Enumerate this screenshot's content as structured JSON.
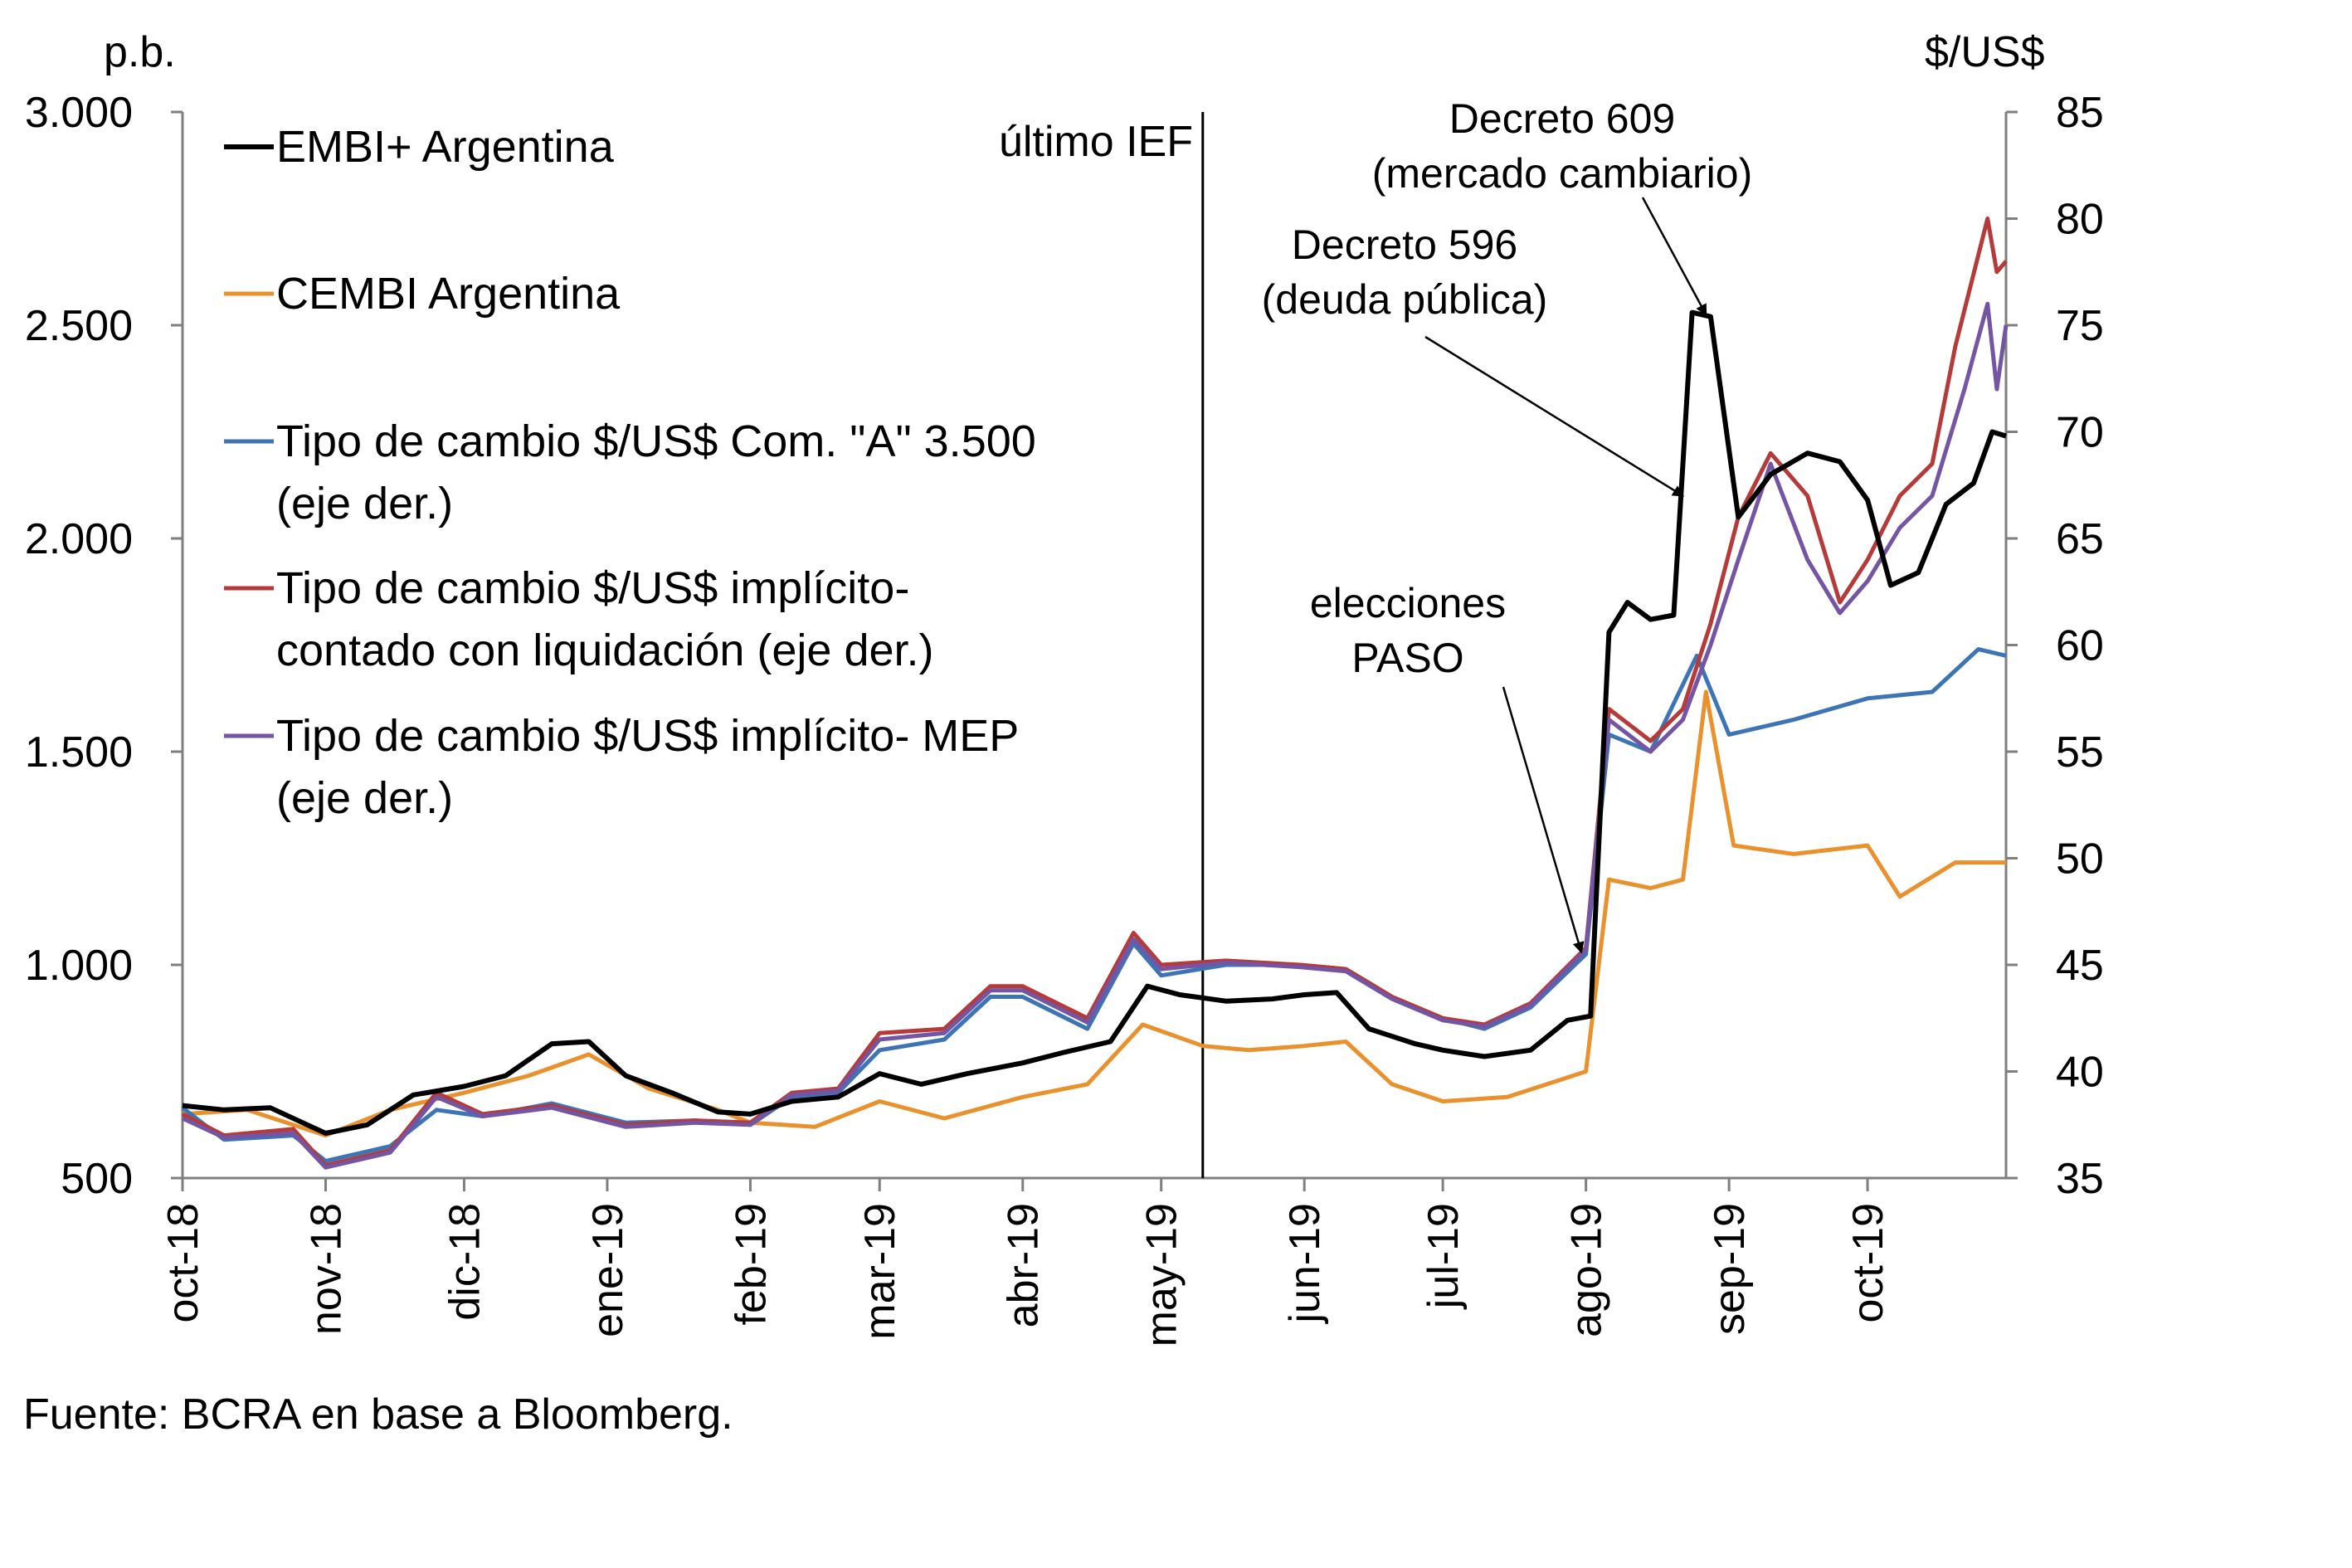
{
  "chart_data": {
    "type": "line",
    "title": "",
    "left_axis": {
      "unit": "p.b.",
      "ylim": [
        500,
        3000
      ],
      "ticks": [
        500,
        1000,
        1500,
        2000,
        2500,
        3000
      ],
      "tick_labels": [
        "500",
        "1.000",
        "1.500",
        "2.000",
        "2.500",
        "3.000"
      ]
    },
    "right_axis": {
      "unit": "$/US$",
      "ylim": [
        35,
        85
      ],
      "ticks": [
        35,
        40,
        45,
        50,
        55,
        60,
        65,
        70,
        75,
        80,
        85
      ],
      "tick_labels": [
        "35",
        "40",
        "45",
        "50",
        "55",
        "60",
        "65",
        "70",
        "75",
        "80",
        "85"
      ]
    },
    "x_axis": {
      "range": [
        "2018-10-01",
        "2019-10-31"
      ],
      "ticks": [
        "2018-10-01",
        "2018-11-01",
        "2018-12-01",
        "2019-01-01",
        "2019-02-01",
        "2019-03-01",
        "2019-04-01",
        "2019-05-01",
        "2019-06-01",
        "2019-07-01",
        "2019-08-01",
        "2019-09-01",
        "2019-10-01"
      ],
      "tick_labels": [
        "oct-18",
        "nov-18",
        "dic-18",
        "ene-19",
        "feb-19",
        "mar-19",
        "abr-19",
        "may-19",
        "jun-19",
        "jul-19",
        "ago-19",
        "sep-19",
        "oct-19"
      ]
    },
    "grid": false,
    "legend_position": "top-left",
    "series": [
      {
        "name": "EMBI+ Argentina",
        "axis": "left",
        "color": "#000000",
        "points": [
          [
            "2018-10-01",
            670
          ],
          [
            "2018-10-10",
            660
          ],
          [
            "2018-10-20",
            665
          ],
          [
            "2018-11-01",
            605
          ],
          [
            "2018-11-10",
            625
          ],
          [
            "2018-11-20",
            695
          ],
          [
            "2018-12-01",
            715
          ],
          [
            "2018-12-10",
            740
          ],
          [
            "2018-12-20",
            815
          ],
          [
            "2018-12-28",
            820
          ],
          [
            "2019-01-05",
            740
          ],
          [
            "2019-01-15",
            700
          ],
          [
            "2019-01-25",
            655
          ],
          [
            "2019-02-01",
            650
          ],
          [
            "2019-02-10",
            680
          ],
          [
            "2019-02-20",
            690
          ],
          [
            "2019-03-01",
            745
          ],
          [
            "2019-03-10",
            720
          ],
          [
            "2019-03-20",
            745
          ],
          [
            "2019-04-01",
            770
          ],
          [
            "2019-04-10",
            795
          ],
          [
            "2019-04-20",
            820
          ],
          [
            "2019-04-28",
            950
          ],
          [
            "2019-05-05",
            930
          ],
          [
            "2019-05-15",
            915
          ],
          [
            "2019-05-25",
            920
          ],
          [
            "2019-06-01",
            930
          ],
          [
            "2019-06-08",
            935
          ],
          [
            "2019-06-15",
            850
          ],
          [
            "2019-06-25",
            815
          ],
          [
            "2019-07-01",
            800
          ],
          [
            "2019-07-10",
            785
          ],
          [
            "2019-07-20",
            800
          ],
          [
            "2019-07-28",
            870
          ],
          [
            "2019-08-02",
            880
          ],
          [
            "2019-08-06",
            1780
          ],
          [
            "2019-08-10",
            1850
          ],
          [
            "2019-08-15",
            1810
          ],
          [
            "2019-08-20",
            1820
          ],
          [
            "2019-08-24",
            2530
          ],
          [
            "2019-08-28",
            2520
          ],
          [
            "2019-09-03",
            2050
          ],
          [
            "2019-09-10",
            2150
          ],
          [
            "2019-09-18",
            2200
          ],
          [
            "2019-09-25",
            2180
          ],
          [
            "2019-10-01",
            2090
          ],
          [
            "2019-10-06",
            1890
          ],
          [
            "2019-10-12",
            1920
          ],
          [
            "2019-10-18",
            2080
          ],
          [
            "2019-10-24",
            2130
          ],
          [
            "2019-10-28",
            2250
          ],
          [
            "2019-10-31",
            2240
          ]
        ]
      },
      {
        "name": "CEMBI Argentina",
        "axis": "left",
        "color": "#e8912d",
        "points": [
          [
            "2018-10-01",
            650
          ],
          [
            "2018-10-15",
            660
          ],
          [
            "2018-11-01",
            600
          ],
          [
            "2018-11-15",
            660
          ],
          [
            "2018-12-01",
            700
          ],
          [
            "2018-12-15",
            740
          ],
          [
            "2018-12-28",
            790
          ],
          [
            "2019-01-10",
            710
          ],
          [
            "2019-01-25",
            660
          ],
          [
            "2019-02-01",
            630
          ],
          [
            "2019-02-15",
            620
          ],
          [
            "2019-03-01",
            680
          ],
          [
            "2019-03-15",
            640
          ],
          [
            "2019-04-01",
            690
          ],
          [
            "2019-04-15",
            720
          ],
          [
            "2019-04-27",
            860
          ],
          [
            "2019-05-10",
            810
          ],
          [
            "2019-05-20",
            800
          ],
          [
            "2019-06-01",
            810
          ],
          [
            "2019-06-10",
            820
          ],
          [
            "2019-06-20",
            720
          ],
          [
            "2019-07-01",
            680
          ],
          [
            "2019-07-15",
            690
          ],
          [
            "2019-08-01",
            750
          ],
          [
            "2019-08-06",
            1200
          ],
          [
            "2019-08-15",
            1180
          ],
          [
            "2019-08-22",
            1200
          ],
          [
            "2019-08-27",
            1640
          ],
          [
            "2019-09-02",
            1280
          ],
          [
            "2019-09-15",
            1260
          ],
          [
            "2019-10-01",
            1280
          ],
          [
            "2019-10-08",
            1160
          ],
          [
            "2019-10-20",
            1240
          ],
          [
            "2019-10-31",
            1240
          ]
        ]
      },
      {
        "name": "Tipo de cambio $/US$ Com. \"A\" 3.500 (eje der.)",
        "axis": "right",
        "color": "#3c74b6",
        "points": [
          [
            "2018-10-01",
            38.3
          ],
          [
            "2018-10-10",
            36.8
          ],
          [
            "2018-10-25",
            37.0
          ],
          [
            "2018-11-01",
            35.8
          ],
          [
            "2018-11-15",
            36.5
          ],
          [
            "2018-11-25",
            38.2
          ],
          [
            "2018-12-05",
            37.9
          ],
          [
            "2018-12-20",
            38.5
          ],
          [
            "2019-01-05",
            37.6
          ],
          [
            "2019-01-20",
            37.7
          ],
          [
            "2019-02-01",
            37.5
          ],
          [
            "2019-02-10",
            38.8
          ],
          [
            "2019-02-20",
            39.0
          ],
          [
            "2019-03-01",
            41.0
          ],
          [
            "2019-03-15",
            41.5
          ],
          [
            "2019-03-25",
            43.5
          ],
          [
            "2019-04-01",
            43.5
          ],
          [
            "2019-04-15",
            42.0
          ],
          [
            "2019-04-25",
            46.0
          ],
          [
            "2019-05-01",
            44.5
          ],
          [
            "2019-05-15",
            45.0
          ],
          [
            "2019-05-31",
            45.0
          ],
          [
            "2019-06-10",
            44.8
          ],
          [
            "2019-06-20",
            43.5
          ],
          [
            "2019-07-01",
            42.5
          ],
          [
            "2019-07-10",
            42.0
          ],
          [
            "2019-07-20",
            43.0
          ],
          [
            "2019-08-01",
            45.5
          ],
          [
            "2019-08-06",
            55.8
          ],
          [
            "2019-08-15",
            55.0
          ],
          [
            "2019-08-25",
            59.5
          ],
          [
            "2019-09-01",
            55.8
          ],
          [
            "2019-09-15",
            56.5
          ],
          [
            "2019-10-01",
            57.5
          ],
          [
            "2019-10-15",
            57.8
          ],
          [
            "2019-10-25",
            59.8
          ],
          [
            "2019-10-31",
            59.5
          ]
        ]
      },
      {
        "name": "Tipo de cambio $/US$ implícito- contado con liquidación (eje der.)",
        "axis": "right",
        "color": "#b53a3a",
        "points": [
          [
            "2018-10-01",
            38.0
          ],
          [
            "2018-10-10",
            37.0
          ],
          [
            "2018-10-25",
            37.3
          ],
          [
            "2018-11-01",
            35.6
          ],
          [
            "2018-11-15",
            36.3
          ],
          [
            "2018-11-25",
            39.0
          ],
          [
            "2018-12-05",
            38.0
          ],
          [
            "2018-12-20",
            38.4
          ],
          [
            "2019-01-05",
            37.5
          ],
          [
            "2019-01-20",
            37.7
          ],
          [
            "2019-02-01",
            37.6
          ],
          [
            "2019-02-10",
            39.0
          ],
          [
            "2019-02-20",
            39.2
          ],
          [
            "2019-03-01",
            41.8
          ],
          [
            "2019-03-15",
            42.0
          ],
          [
            "2019-03-25",
            44.0
          ],
          [
            "2019-04-01",
            44.0
          ],
          [
            "2019-04-15",
            42.5
          ],
          [
            "2019-04-25",
            46.5
          ],
          [
            "2019-05-01",
            45.0
          ],
          [
            "2019-05-15",
            45.2
          ],
          [
            "2019-05-31",
            45.0
          ],
          [
            "2019-06-10",
            44.8
          ],
          [
            "2019-06-20",
            43.5
          ],
          [
            "2019-07-01",
            42.5
          ],
          [
            "2019-07-10",
            42.2
          ],
          [
            "2019-07-20",
            43.2
          ],
          [
            "2019-08-01",
            45.8
          ],
          [
            "2019-08-06",
            57.0
          ],
          [
            "2019-08-15",
            55.5
          ],
          [
            "2019-08-22",
            57.0
          ],
          [
            "2019-08-28",
            61.0
          ],
          [
            "2019-09-03",
            66.0
          ],
          [
            "2019-09-10",
            69.0
          ],
          [
            "2019-09-18",
            67.0
          ],
          [
            "2019-09-25",
            62.0
          ],
          [
            "2019-10-01",
            64.0
          ],
          [
            "2019-10-08",
            67.0
          ],
          [
            "2019-10-15",
            68.5
          ],
          [
            "2019-10-20",
            74.0
          ],
          [
            "2019-10-27",
            80.0
          ],
          [
            "2019-10-29",
            77.5
          ],
          [
            "2019-10-31",
            78.0
          ]
        ]
      },
      {
        "name": "Tipo de cambio $/US$ implícito- MEP (eje der.)",
        "axis": "right",
        "color": "#7455a3",
        "points": [
          [
            "2018-10-01",
            37.8
          ],
          [
            "2018-10-10",
            36.9
          ],
          [
            "2018-10-25",
            37.1
          ],
          [
            "2018-11-01",
            35.5
          ],
          [
            "2018-11-15",
            36.2
          ],
          [
            "2018-11-25",
            38.8
          ],
          [
            "2018-12-05",
            37.9
          ],
          [
            "2018-12-20",
            38.3
          ],
          [
            "2019-01-05",
            37.4
          ],
          [
            "2019-01-20",
            37.6
          ],
          [
            "2019-02-01",
            37.5
          ],
          [
            "2019-02-10",
            38.9
          ],
          [
            "2019-02-20",
            39.1
          ],
          [
            "2019-03-01",
            41.5
          ],
          [
            "2019-03-15",
            41.8
          ],
          [
            "2019-03-25",
            43.8
          ],
          [
            "2019-04-01",
            43.8
          ],
          [
            "2019-04-15",
            42.3
          ],
          [
            "2019-04-25",
            46.2
          ],
          [
            "2019-05-01",
            44.8
          ],
          [
            "2019-05-15",
            45.1
          ],
          [
            "2019-05-31",
            44.9
          ],
          [
            "2019-06-10",
            44.7
          ],
          [
            "2019-06-20",
            43.4
          ],
          [
            "2019-07-01",
            42.4
          ],
          [
            "2019-07-10",
            42.1
          ],
          [
            "2019-07-20",
            43.1
          ],
          [
            "2019-08-01",
            45.7
          ],
          [
            "2019-08-06",
            56.5
          ],
          [
            "2019-08-15",
            55.0
          ],
          [
            "2019-08-22",
            56.5
          ],
          [
            "2019-08-28",
            60.0
          ],
          [
            "2019-09-03",
            64.0
          ],
          [
            "2019-09-10",
            68.5
          ],
          [
            "2019-09-18",
            64.0
          ],
          [
            "2019-09-25",
            61.5
          ],
          [
            "2019-10-01",
            63.0
          ],
          [
            "2019-10-08",
            65.5
          ],
          [
            "2019-10-15",
            67.0
          ],
          [
            "2019-10-22",
            72.0
          ],
          [
            "2019-10-27",
            76.0
          ],
          [
            "2019-10-29",
            72.0
          ],
          [
            "2019-10-31",
            75.0
          ]
        ]
      }
    ],
    "annotations": {
      "last_ief": {
        "label": "último IEF",
        "date": "2019-05-10"
      },
      "decreto_609": {
        "line1": "Decreto 609",
        "line2": "(mercado cambiario)",
        "date": "2019-08-27",
        "value": 2525
      },
      "decreto_596": {
        "line1": "Decreto 596",
        "line2": "(deuda pública)",
        "date": "2019-08-22",
        "value": 2100
      },
      "elecciones": {
        "line1": "elecciones",
        "line2": "PASO",
        "date": "2019-07-31",
        "value": 1030
      }
    },
    "source": "Fuente: BCRA en base a Bloomberg."
  }
}
